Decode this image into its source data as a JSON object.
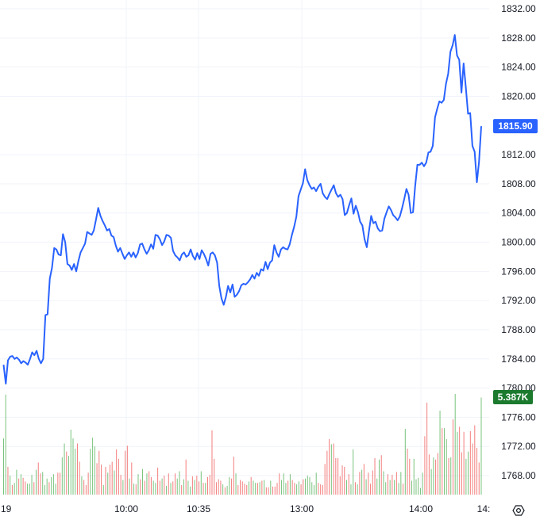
{
  "chart_data": {
    "type": "line",
    "y_ticks": [
      "1832.00",
      "1828.00",
      "1824.00",
      "1820.00",
      "1812.00",
      "1808.00",
      "1804.00",
      "1800.00",
      "1796.00",
      "1792.00",
      "1788.00",
      "1784.00",
      "1780.00",
      "1776.00",
      "1772.00",
      "1768.00"
    ],
    "x_ticks": [
      "19",
      "10:00",
      "10:35",
      "13:00",
      "14:00",
      "14:"
    ],
    "ylim": [
      1766.0,
      1833.2
    ],
    "last_price": "1815.90",
    "last_volume": "5.387K",
    "price_series": [
      1783.2,
      1780.6,
      1783.8,
      1784.3,
      1784.4,
      1784.0,
      1784.2,
      1783.9,
      1783.4,
      1783.7,
      1783.5,
      1783.2,
      1784.0,
      1784.9,
      1784.5,
      1785.1,
      1784.0,
      1783.4,
      1784.0,
      1790.0,
      1790.1,
      1795.0,
      1796.5,
      1799.2,
      1799.0,
      1798.3,
      1798.2,
      1801.1,
      1800.0,
      1797.0,
      1796.8,
      1796.2,
      1797.0,
      1796.0,
      1797.4,
      1798.6,
      1799.2,
      1799.8,
      1801.4,
      1801.2,
      1801.0,
      1801.6,
      1803.1,
      1804.7,
      1803.6,
      1802.9,
      1802.3,
      1801.6,
      1801.8,
      1800.9,
      1800.7,
      1799.5,
      1798.7,
      1799.2,
      1798.4,
      1797.7,
      1798.2,
      1798.6,
      1798.0,
      1798.6,
      1797.9,
      1798.5,
      1799.7,
      1799.8,
      1799.0,
      1798.4,
      1798.9,
      1799.7,
      1799.1,
      1801.0,
      1800.9,
      1800.4,
      1799.6,
      1800.1,
      1801.0,
      1800.9,
      1800.6,
      1798.8,
      1798.2,
      1797.9,
      1797.5,
      1798.3,
      1798.6,
      1798.0,
      1798.2,
      1799.0,
      1798.1,
      1797.6,
      1798.5,
      1797.7,
      1798.9,
      1798.4,
      1797.7,
      1796.8,
      1798.4,
      1798.6,
      1798.2,
      1797.2,
      1794.0,
      1792.3,
      1791.4,
      1792.5,
      1794.0,
      1793.1,
      1794.2,
      1792.5,
      1792.8,
      1793.3,
      1794.1,
      1794.3,
      1794.2,
      1794.5,
      1794.9,
      1795.5,
      1795.0,
      1795.8,
      1795.4,
      1796.3,
      1796.1,
      1797.3,
      1796.3,
      1797.2,
      1797.5,
      1799.6,
      1798.6,
      1798.0,
      1799.0,
      1799.3,
      1799.1,
      1799.0,
      1799.7,
      1801.0,
      1802.1,
      1803.5,
      1806.3,
      1807.2,
      1808.1,
      1810.0,
      1808.5,
      1807.8,
      1807.3,
      1807.5,
      1807.0,
      1807.6,
      1808.0,
      1806.7,
      1806.2,
      1805.9,
      1806.6,
      1807.2,
      1807.8,
      1806.7,
      1806.2,
      1806.5,
      1805.9,
      1803.7,
      1804.0,
      1805.1,
      1806.0,
      1803.9,
      1805.0,
      1804.1,
      1802.8,
      1802.3,
      1800.4,
      1799.3,
      1801.5,
      1803.6,
      1802.6,
      1802.8,
      1801.9,
      1801.5,
      1801.6,
      1803.2,
      1804.1,
      1804.9,
      1804.4,
      1803.7,
      1803.4,
      1803.0,
      1803.5,
      1804.6,
      1805.9,
      1807.3,
      1806.5,
      1804.0,
      1804.1,
      1807.7,
      1810.6,
      1810.6,
      1810.9,
      1810.4,
      1810.9,
      1812.3,
      1812.4,
      1813.2,
      1817.1,
      1818.3,
      1819.3,
      1819.1,
      1819.5,
      1821.7,
      1823.1,
      1826.1,
      1827.0,
      1828.4,
      1825.6,
      1825.0,
      1820.5,
      1824.5,
      1821.2,
      1817.6,
      1817.7,
      1813.2,
      1812.4,
      1808.2,
      1811.0,
      1815.9
    ],
    "volume_series": [
      1773.1,
      1779.1,
      1769.2,
      1768.0,
      1766.7,
      1767.0,
      1768.8,
      1767.6,
      1768.2,
      1767.7,
      1767.2,
      1766.9,
      1766.9,
      1768.1,
      1767.1,
      1768.8,
      1769.8,
      1768.3,
      1768.5,
      1766.7,
      1767.6,
      1767.1,
      1767.8,
      1768.2,
      1766.9,
      1768.4,
      1768.4,
      1770.5,
      1772.4,
      1771.3,
      1770.7,
      1774.3,
      1773.1,
      1771.7,
      1772.4,
      1769.9,
      1767.9,
      1767.4,
      1766.7,
      1768.4,
      1771.7,
      1773.2,
      1772.0,
      1769.7,
      1771.4,
      1769.5,
      1766.7,
      1769.2,
      1768.4,
      1769.5,
      1769.9,
      1768.7,
      1771.6,
      1770.3,
      1768.1,
      1767.4,
      1771.4,
      1772.1,
      1767.6,
      1769.8,
      1766.9,
      1766.8,
      1768.2,
      1767.5,
      1768.9,
      1767.3,
      1768.3,
      1768.6,
      1767.8,
      1767.3,
      1767.0,
      1769.1,
      1767.3,
      1767.6,
      1768.0,
      1766.6,
      1768.3,
      1767.0,
      1767.2,
      1768.3,
      1767.6,
      1768.6,
      1766.7,
      1767.5,
      1770.2,
      1767.3,
      1766.5,
      1767.9,
      1767.4,
      1768.0,
      1767.2,
      1768.6,
      1767.0,
      1767.0,
      1767.8,
      1768.1,
      1774.2,
      1770.3,
      1767.1,
      1767.5,
      1767.3,
      1766.8,
      1766.4,
      1766.6,
      1767.8,
      1767.6,
      1770.6,
      1768.3,
      1766.7,
      1767.4,
      1767.2,
      1766.9,
      1766.7,
      1767.2,
      1767.8,
      1767.3,
      1767.0,
      1767.0,
      1767.1,
      1767.3,
      1767.4,
      1766.4,
      1766.4,
      1767.3,
      1766.5,
      1766.5,
      1767.0,
      1768.3,
      1767.4,
      1768.3,
      1767.0,
      1767.3,
      1768.2,
      1767.4,
      1767.0,
      1766.8,
      1767.2,
      1766.8,
      1767.5,
      1767.6,
      1768.0,
      1767.8,
      1767.1,
      1766.7,
      1768.4,
      1767.0,
      1766.8,
      1766.7,
      1769.6,
      1771.4,
      1773.0,
      1772.3,
      1772.4,
      1770.4,
      1770.4,
      1767.9,
      1769.4,
      1769.2,
      1767.4,
      1768.2,
      1766.8,
      1771.6,
      1767.1,
      1766.8,
      1768.5,
      1768.8,
      1769.6,
      1767.5,
      1768.4,
      1766.9,
      1768.7,
      1770.4,
      1767.6,
      1770.2,
      1770.8,
      1768.6,
      1767.1,
      1768.2,
      1767.4,
      1768.1,
      1767.4,
      1768.5,
      1767.0,
      1768.5,
      1766.9,
      1774.4,
      1771.7,
      1770.3,
      1767.3,
      1770.3,
      1767.5,
      1767.7,
      1766.3,
      1768.4,
      1773.4,
      1778.0,
      1770.9,
      1768.9,
      1770.5,
      1770.2,
      1771.1,
      1776.9,
      1774.5,
      1774.5,
      1773.0,
      1770.4,
      1770.5,
      1775.7,
      1779.2,
      1774.0,
      1774.7,
      1771.2,
      1774.0,
      1770.3,
      1771.3,
      1774.1,
      1772.4,
      1774.9,
      1771.8,
      1769.8,
      1778.7
    ],
    "volume_colors": [
      "green",
      "green",
      "red",
      "green",
      "red",
      "green",
      "green",
      "red",
      "green",
      "red",
      "red",
      "green",
      "green",
      "green",
      "red",
      "green",
      "red",
      "red",
      "green",
      "green",
      "green",
      "red",
      "green",
      "green",
      "green",
      "red",
      "red",
      "green",
      "green",
      "red",
      "green",
      "green",
      "green",
      "green",
      "red",
      "red",
      "green",
      "red",
      "red",
      "red",
      "green",
      "green",
      "green",
      "red",
      "red",
      "red",
      "green",
      "red",
      "green",
      "red",
      "red",
      "green",
      "red",
      "red",
      "red",
      "green",
      "red",
      "red",
      "green",
      "red",
      "green",
      "red",
      "green",
      "red",
      "green",
      "red",
      "green",
      "red",
      "red",
      "green",
      "green",
      "red",
      "red",
      "green",
      "red",
      "green",
      "red",
      "green",
      "red",
      "red",
      "green",
      "green",
      "red",
      "green",
      "red",
      "green",
      "green",
      "red",
      "green",
      "red",
      "red",
      "green",
      "red",
      "green",
      "red",
      "red",
      "red",
      "red",
      "red",
      "red",
      "red",
      "green",
      "red",
      "green",
      "green",
      "red",
      "red",
      "green",
      "red",
      "red",
      "red",
      "red",
      "red",
      "green",
      "red",
      "green",
      "green",
      "red",
      "green",
      "red",
      "green",
      "red",
      "red",
      "green",
      "red",
      "red",
      "red",
      "red",
      "green",
      "green",
      "green",
      "red",
      "green",
      "red",
      "red",
      "green",
      "green",
      "red",
      "red",
      "green",
      "green",
      "green",
      "green",
      "green",
      "green",
      "red",
      "red",
      "red",
      "red",
      "red",
      "red",
      "green",
      "red",
      "red",
      "red",
      "red",
      "red",
      "red",
      "green",
      "red",
      "green",
      "green",
      "red",
      "green",
      "red",
      "green",
      "red",
      "green",
      "red",
      "red",
      "red",
      "red",
      "green",
      "green",
      "red",
      "green",
      "green",
      "red",
      "green",
      "red",
      "green",
      "red",
      "green",
      "green",
      "red",
      "green",
      "red",
      "red",
      "green",
      "green",
      "green",
      "green",
      "green",
      "green",
      "red",
      "red",
      "red",
      "green",
      "green",
      "red",
      "red",
      "green",
      "red",
      "green",
      "green",
      "red",
      "green",
      "red",
      "green",
      "green",
      "red",
      "red",
      "red",
      "green",
      "green",
      "red",
      "red",
      "red",
      "red",
      "red",
      "green"
    ],
    "colors": {
      "line": "#2962ff",
      "up": "#4caf50",
      "down": "#ef5350",
      "price_badge": "#2962ff",
      "volume_badge": "#1b7a2e",
      "grid": "#f0f3fa",
      "text": "#131722"
    },
    "settings_icon": "gear-icon"
  }
}
